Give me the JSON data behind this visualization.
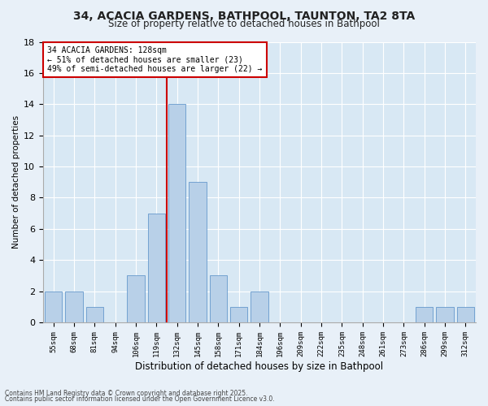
{
  "title1": "34, ACACIA GARDENS, BATHPOOL, TAUNTON, TA2 8TA",
  "title2": "Size of property relative to detached houses in Bathpool",
  "xlabel": "Distribution of detached houses by size in Bathpool",
  "ylabel": "Number of detached properties",
  "bar_labels": [
    "55sqm",
    "68sqm",
    "81sqm",
    "94sqm",
    "106sqm",
    "119sqm",
    "132sqm",
    "145sqm",
    "158sqm",
    "171sqm",
    "184sqm",
    "196sqm",
    "209sqm",
    "222sqm",
    "235sqm",
    "248sqm",
    "261sqm",
    "273sqm",
    "286sqm",
    "299sqm",
    "312sqm"
  ],
  "bar_values": [
    2,
    2,
    1,
    0,
    3,
    7,
    14,
    9,
    3,
    1,
    2,
    0,
    0,
    0,
    0,
    0,
    0,
    0,
    1,
    1,
    1
  ],
  "bar_color": "#b8d0e8",
  "bar_edge_color": "#6699cc",
  "vline_index": 6,
  "vline_color": "#cc0000",
  "ylim": [
    0,
    18
  ],
  "yticks": [
    0,
    2,
    4,
    6,
    8,
    10,
    12,
    14,
    16,
    18
  ],
  "annotation_title": "34 ACACIA GARDENS: 128sqm",
  "annotation_line2": "← 51% of detached houses are smaller (23)",
  "annotation_line3": "49% of semi-detached houses are larger (22) →",
  "annotation_box_color": "#ffffff",
  "annotation_box_edge": "#cc0000",
  "footer1": "Contains HM Land Registry data © Crown copyright and database right 2025.",
  "footer2": "Contains public sector information licensed under the Open Government Licence v3.0.",
  "bg_color": "#e8f0f8",
  "plot_bg_color": "#d8e8f4",
  "grid_color": "#ffffff"
}
